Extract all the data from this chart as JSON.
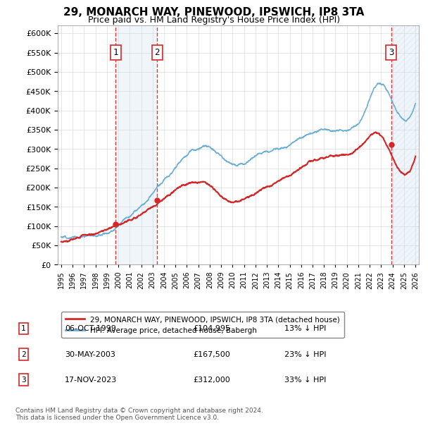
{
  "title": "29, MONARCH WAY, PINEWOOD, IPSWICH, IP8 3TA",
  "subtitle": "Price paid vs. HM Land Registry's House Price Index (HPI)",
  "ylabel_ticks": [
    "£0",
    "£50K",
    "£100K",
    "£150K",
    "£200K",
    "£250K",
    "£300K",
    "£350K",
    "£400K",
    "£450K",
    "£500K",
    "£550K",
    "£600K"
  ],
  "ylim": [
    0,
    620000
  ],
  "ytick_values": [
    0,
    50000,
    100000,
    150000,
    200000,
    250000,
    300000,
    350000,
    400000,
    450000,
    500000,
    550000,
    600000
  ],
  "x_start_year": 1995,
  "x_end_year": 2026,
  "sale_dates": [
    "1999-10-06",
    "2003-05-30",
    "2023-11-17"
  ],
  "sale_prices": [
    104995,
    167500,
    312000
  ],
  "sale_labels": [
    "1",
    "2",
    "3"
  ],
  "sale_below_hpi_pct": [
    "13%",
    "23%",
    "33%"
  ],
  "hpi_color": "#6baed6",
  "price_color": "#d62728",
  "vline_color": "#d62728",
  "shade_color": "#c6dbef",
  "hatch_color": "#c6dbef",
  "legend_line1": "29, MONARCH WAY, PINEWOOD, IPSWICH, IP8 3TA (detached house)",
  "legend_line2": "HPI: Average price, detached house, Babergh",
  "table_rows": [
    [
      "1",
      "06-OCT-1999",
      "£104,995",
      "13% ↓ HPI"
    ],
    [
      "2",
      "30-MAY-2003",
      "£167,500",
      "23% ↓ HPI"
    ],
    [
      "3",
      "17-NOV-2023",
      "£312,000",
      "33% ↓ HPI"
    ]
  ],
  "footer": "Contains HM Land Registry data © Crown copyright and database right 2024.\nThis data is licensed under the Open Government Licence v3.0.",
  "background_color": "#ffffff",
  "grid_color": "#cccccc"
}
